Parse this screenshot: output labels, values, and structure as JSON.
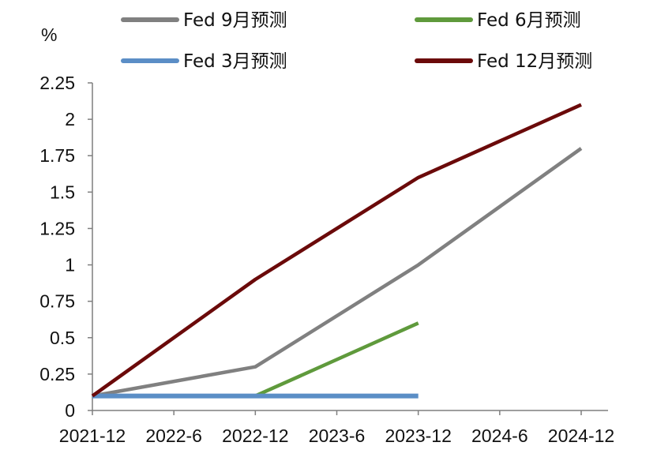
{
  "chart_data": {
    "type": "line",
    "ylabel": "%",
    "ylim": [
      0,
      2.25
    ],
    "y_ticks": [
      "0",
      "0.25",
      "0.5",
      "0.75",
      "1",
      "1.25",
      "1.5",
      "1.75",
      "2",
      "2.25"
    ],
    "x_ticks": [
      "2021-12",
      "2022-6",
      "2022-12",
      "2023-6",
      "2023-12",
      "2024-6",
      "2024-12"
    ],
    "grid": false,
    "legend_position": "top",
    "series": [
      {
        "name": "Fed 9月预测",
        "color": "#808080",
        "x": [
          "2021-12",
          "2022-12",
          "2023-12",
          "2024-12"
        ],
        "values": [
          0.1,
          0.3,
          1.0,
          1.8
        ]
      },
      {
        "name": "Fed 6月预测",
        "color": "#5f9a3c",
        "x": [
          "2021-12",
          "2022-12",
          "2023-12"
        ],
        "values": [
          0.1,
          0.1,
          0.6
        ]
      },
      {
        "name": "Fed 3月预测",
        "color": "#5b8ec6",
        "x": [
          "2021-12",
          "2022-12",
          "2023-12"
        ],
        "values": [
          0.1,
          0.1,
          0.1
        ]
      },
      {
        "name": "Fed 12月预测",
        "color": "#6b0a0a",
        "x": [
          "2021-12",
          "2022-12",
          "2023-12",
          "2024-12"
        ],
        "values": [
          0.1,
          0.9,
          1.6,
          2.1
        ]
      }
    ]
  }
}
